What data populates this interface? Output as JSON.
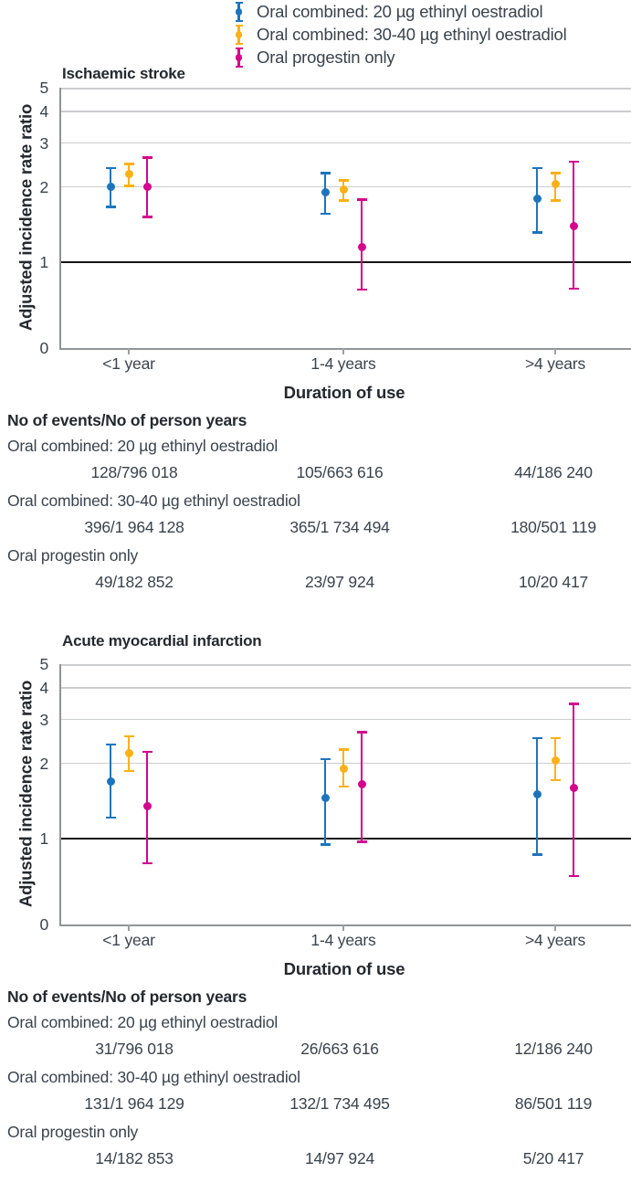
{
  "legend": {
    "items": [
      {
        "label": "Oral combined: 20 µg ethinyl oestradiol",
        "color": "#1c75bc"
      },
      {
        "label": "Oral combined: 30-40 µg ethinyl oestradiol",
        "color": "#fbb116"
      },
      {
        "label": "Oral progestin only",
        "color": "#d4058c"
      }
    ]
  },
  "chart_data": [
    {
      "type": "scatter",
      "title": "Ischaemic stroke",
      "xlabel": "Duration of use",
      "ylabel": "Adjusted incidence rate ratio",
      "categories": [
        "<1 year",
        "1-4 years",
        ">4 years"
      ],
      "yticks": [
        0,
        1,
        2,
        3,
        4,
        5
      ],
      "ylim": [
        0,
        5
      ],
      "yscale": "log above 1, compressed segment between 0 and 1",
      "reference_line": 1,
      "grid": "horizontal gridlines at 2,3,4,5; black reference line at 1",
      "legend_position": "above figure, shared by both panels",
      "series": [
        {
          "name": "Oral combined: 20 µg ethinyl oestradiol",
          "color": "#1c75bc",
          "values": [
            {
              "est": 2.0,
              "lo": 1.65,
              "hi": 2.4
            },
            {
              "est": 1.9,
              "lo": 1.55,
              "hi": 2.3
            },
            {
              "est": 1.8,
              "lo": 1.3,
              "hi": 2.4
            }
          ]
        },
        {
          "name": "Oral combined: 30-40 µg ethinyl oestradiol",
          "color": "#fbb116",
          "values": [
            {
              "est": 2.25,
              "lo": 2.0,
              "hi": 2.5
            },
            {
              "est": 1.95,
              "lo": 1.75,
              "hi": 2.15
            },
            {
              "est": 2.05,
              "lo": 1.75,
              "hi": 2.3
            }
          ]
        },
        {
          "name": "Oral progestin only",
          "color": "#d4058c",
          "values": [
            {
              "est": 2.0,
              "lo": 1.5,
              "hi": 2.65
            },
            {
              "est": 1.15,
              "lo": 0.67,
              "hi": 1.8
            },
            {
              "est": 1.4,
              "lo": 0.68,
              "hi": 2.55
            }
          ]
        }
      ],
      "events_table": {
        "header": "No of events/No of person years",
        "rows": [
          {
            "label": "Oral combined: 20 µg ethinyl oestradiol",
            "values": [
              "128/796 018",
              "105/663 616",
              "44/186 240"
            ]
          },
          {
            "label": "Oral combined: 30-40 µg ethinyl oestradiol",
            "values": [
              "396/1 964 128",
              "365/1 734 494",
              "180/501 119"
            ]
          },
          {
            "label": "Oral progestin only",
            "values": [
              "49/182 852",
              "23/97 924",
              "10/20 417"
            ]
          }
        ]
      }
    },
    {
      "type": "scatter",
      "title": "Acute myocardial infarction",
      "xlabel": "Duration of use",
      "ylabel": "Adjusted incidence rate ratio",
      "categories": [
        "<1 year",
        "1-4 years",
        ">4 years"
      ],
      "yticks": [
        0,
        1,
        2,
        3,
        4,
        5
      ],
      "ylim": [
        0,
        5
      ],
      "yscale": "log above 1, compressed segment between 0 and 1",
      "reference_line": 1,
      "grid": "horizontal gridlines at 2,3,4,5; black reference line at 1",
      "series": [
        {
          "name": "Oral combined: 20 µg ethinyl oestradiol",
          "color": "#1c75bc",
          "values": [
            {
              "est": 1.7,
              "lo": 1.2,
              "hi": 2.4
            },
            {
              "est": 1.45,
              "lo": 0.92,
              "hi": 2.1
            },
            {
              "est": 1.5,
              "lo": 0.8,
              "hi": 2.55
            }
          ]
        },
        {
          "name": "Oral combined: 30-40 µg ethinyl oestradiol",
          "color": "#fbb116",
          "values": [
            {
              "est": 2.2,
              "lo": 1.85,
              "hi": 2.6
            },
            {
              "est": 1.9,
              "lo": 1.6,
              "hi": 2.3
            },
            {
              "est": 2.05,
              "lo": 1.7,
              "hi": 2.55
            }
          ]
        },
        {
          "name": "Oral progestin only",
          "color": "#d4058c",
          "values": [
            {
              "est": 1.35,
              "lo": 0.7,
              "hi": 2.25
            },
            {
              "est": 1.65,
              "lo": 0.95,
              "hi": 2.7
            },
            {
              "est": 1.6,
              "lo": 0.55,
              "hi": 3.5
            }
          ]
        }
      ],
      "events_table": {
        "header": "No of events/No of person years",
        "rows": [
          {
            "label": "Oral combined: 20 µg ethinyl oestradiol",
            "values": [
              "31/796 018",
              "26/663 616",
              "12/186 240"
            ]
          },
          {
            "label": "Oral combined: 30-40 µg ethinyl oestradiol",
            "values": [
              "131/1 964 129",
              "132/1 734 495",
              "86/501 119"
            ]
          },
          {
            "label": "Oral progestin only",
            "values": [
              "14/182 853",
              "14/97 924",
              "5/20 417"
            ]
          }
        ]
      }
    }
  ],
  "colors": {
    "series_blue": "#1c75bc",
    "series_yellow": "#fbb116",
    "series_magenta": "#d4058c",
    "gridline": "#cbcdcf",
    "axis": "#8f9496",
    "reference_line": "#141414",
    "text": "#3a434c",
    "bold_text": "#24292e"
  }
}
